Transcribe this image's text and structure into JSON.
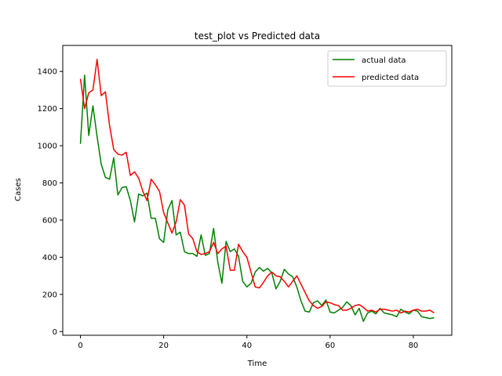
{
  "chart_data": {
    "type": "line",
    "title": "test_plot vs Predicted data",
    "xlabel": "Time",
    "ylabel": "Cases",
    "xlim": [
      -4.25,
      89.25
    ],
    "ylim": [
      -20,
      1540
    ],
    "xticks": [
      0,
      20,
      40,
      60,
      80
    ],
    "yticks": [
      0,
      200,
      400,
      600,
      800,
      1000,
      1200,
      1400
    ],
    "grid": false,
    "legend": "top-right",
    "series": [
      {
        "name": "actual data",
        "color": "#008000",
        "x": [
          0,
          1,
          2,
          3,
          4,
          5,
          6,
          7,
          8,
          9,
          10,
          11,
          12,
          13,
          14,
          15,
          16,
          17,
          18,
          19,
          20,
          21,
          22,
          23,
          24,
          25,
          26,
          27,
          28,
          29,
          30,
          31,
          32,
          33,
          34,
          35,
          36,
          37,
          38,
          39,
          40,
          41,
          42,
          43,
          44,
          45,
          46,
          47,
          48,
          49,
          50,
          51,
          52,
          53,
          54,
          55,
          56,
          57,
          58,
          59,
          60,
          61,
          62,
          63,
          64,
          65,
          66,
          67,
          68,
          69,
          70,
          71,
          72,
          73,
          74,
          75,
          76,
          77,
          78,
          79,
          80,
          81,
          82,
          83,
          84,
          85
        ],
        "values": [
          1010,
          1380,
          1055,
          1215,
          1050,
          900,
          830,
          820,
          935,
          735,
          775,
          780,
          705,
          590,
          740,
          730,
          745,
          610,
          610,
          500,
          480,
          655,
          705,
          520,
          535,
          430,
          420,
          420,
          405,
          520,
          410,
          420,
          555,
          375,
          260,
          485,
          430,
          445,
          405,
          270,
          240,
          260,
          320,
          345,
          325,
          340,
          315,
          230,
          270,
          335,
          310,
          295,
          240,
          165,
          110,
          105,
          155,
          165,
          140,
          170,
          105,
          100,
          115,
          130,
          160,
          140,
          90,
          125,
          55,
          100,
          110,
          95,
          125,
          100,
          95,
          90,
          80,
          120,
          105,
          95,
          115,
          110,
          80,
          75,
          70,
          75
        ]
      },
      {
        "name": "predicted data",
        "color": "#ff0000",
        "x": [
          0,
          1,
          2,
          3,
          4,
          5,
          6,
          7,
          8,
          9,
          10,
          11,
          12,
          13,
          14,
          15,
          16,
          17,
          18,
          19,
          20,
          21,
          22,
          23,
          24,
          25,
          26,
          27,
          28,
          29,
          30,
          31,
          32,
          33,
          34,
          35,
          36,
          37,
          38,
          39,
          40,
          41,
          42,
          43,
          44,
          45,
          46,
          47,
          48,
          49,
          50,
          51,
          52,
          53,
          54,
          55,
          56,
          57,
          58,
          59,
          60,
          61,
          62,
          63,
          64,
          65,
          66,
          67,
          68,
          69,
          70,
          71,
          72,
          73,
          74,
          75,
          76,
          77,
          78,
          79,
          80,
          81,
          82,
          83,
          84,
          85
        ],
        "values": [
          1360,
          1200,
          1285,
          1300,
          1465,
          1270,
          1290,
          1110,
          980,
          955,
          950,
          965,
          840,
          860,
          825,
          755,
          705,
          820,
          790,
          755,
          640,
          585,
          530,
          590,
          710,
          680,
          525,
          500,
          430,
          415,
          420,
          430,
          480,
          420,
          445,
          460,
          330,
          330,
          470,
          430,
          400,
          320,
          240,
          235,
          265,
          300,
          320,
          300,
          295,
          270,
          240,
          270,
          300,
          255,
          210,
          165,
          140,
          125,
          135,
          160,
          155,
          145,
          140,
          115,
          115,
          125,
          140,
          145,
          130,
          110,
          115,
          105,
          120,
          120,
          115,
          110,
          115,
          100,
          110,
          105,
          115,
          120,
          110,
          110,
          115,
          100
        ]
      }
    ]
  }
}
